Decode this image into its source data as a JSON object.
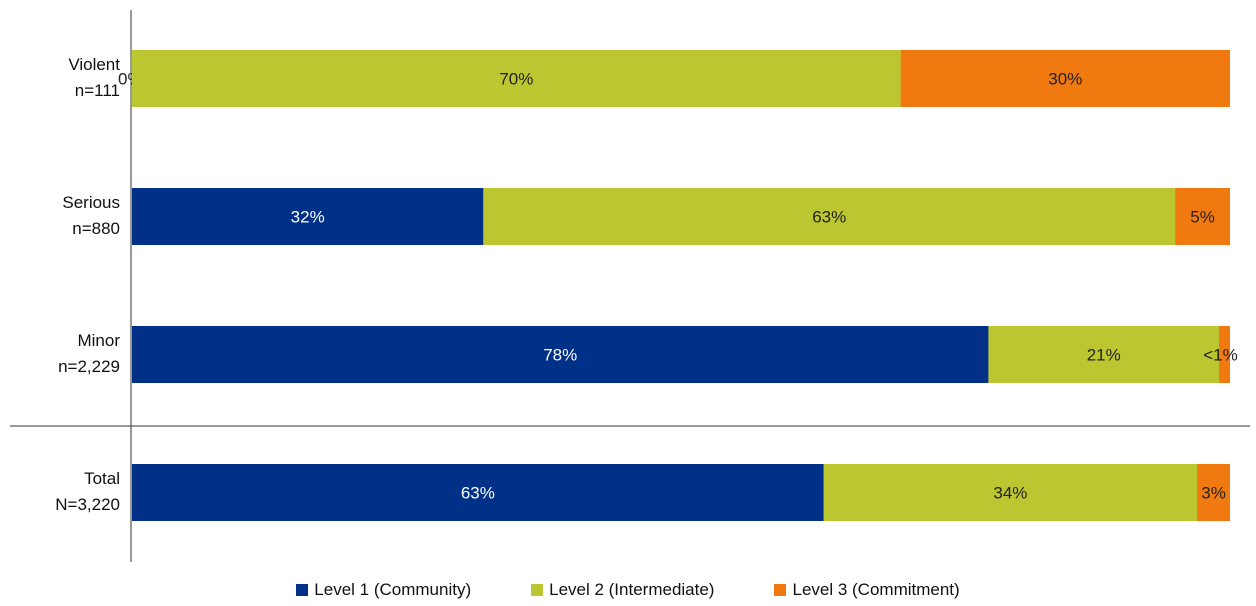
{
  "chart_data": {
    "type": "bar",
    "orientation": "horizontal",
    "stacked": true,
    "normalized": true,
    "categories": [
      {
        "name": "Violent",
        "n": "n=111"
      },
      {
        "name": "Serious",
        "n": "n=880"
      },
      {
        "name": "Minor",
        "n": "n=2,229"
      },
      {
        "name": "Total",
        "n": "N=3,220"
      }
    ],
    "series": [
      {
        "name": "Level 1 (Community)",
        "color": "#003087",
        "values": [
          0,
          32,
          78,
          63
        ],
        "labels": [
          "0%",
          "32%",
          "78%",
          "63%"
        ],
        "label_color": "#ffffff"
      },
      {
        "name": "Level 2 (Intermediate)",
        "color": "#bcc630",
        "values": [
          70,
          63,
          21,
          34
        ],
        "labels": [
          "70%",
          "63%",
          "21%",
          "34%"
        ],
        "label_color": "#222222"
      },
      {
        "name": "Level 3 (Commitment)",
        "color": "#f07a10",
        "values": [
          30,
          5,
          1,
          3
        ],
        "labels": [
          "30%",
          "5%",
          "<1%",
          "3%"
        ],
        "label_color": "#222222"
      }
    ],
    "xlim": [
      0,
      100
    ],
    "grid": false,
    "legend_position": "bottom"
  }
}
